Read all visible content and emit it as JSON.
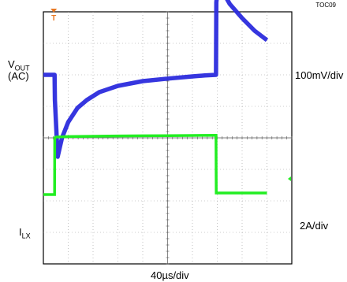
{
  "chart_data": {
    "type": "line",
    "title": "",
    "figure_tag": "TOC09",
    "xlabel": "40µs/div",
    "x_divisions": 10,
    "y_divisions": 8,
    "grid": true,
    "trigger_marker": "T",
    "trigger_marker_color": "#e87722",
    "channels": [
      {
        "name": "VOUT (AC)",
        "label_main": "V",
        "label_sub": "OUT",
        "label_line2": "(AC)",
        "scale": "100mV/div",
        "color": "#2b2bdd",
        "unit": "mV",
        "time_us": [
          0,
          18,
          18.5,
          23,
          30,
          40,
          55,
          70,
          90,
          120,
          160,
          200,
          240,
          260,
          278,
          278.5,
          282,
          290,
          300,
          320,
          340,
          360
        ],
        "values": [
          0,
          0,
          -80,
          -260,
          -200,
          -150,
          -105,
          -80,
          -55,
          -35,
          -20,
          -12,
          -5,
          -2,
          0,
          230,
          300,
          260,
          225,
          180,
          140,
          110
        ]
      },
      {
        "name": "ILX",
        "label_main": "I",
        "label_sub": "LX",
        "scale": "2A/div",
        "color": "#22ee22",
        "unit": "A",
        "time_us": [
          0,
          18,
          18.3,
          20,
          40,
          80,
          120,
          160,
          200,
          240,
          278,
          278.3,
          360
        ],
        "values": [
          0,
          0,
          3.6,
          3.65,
          3.68,
          3.7,
          3.72,
          3.73,
          3.74,
          3.75,
          3.76,
          0.1,
          0.1
        ]
      }
    ]
  }
}
